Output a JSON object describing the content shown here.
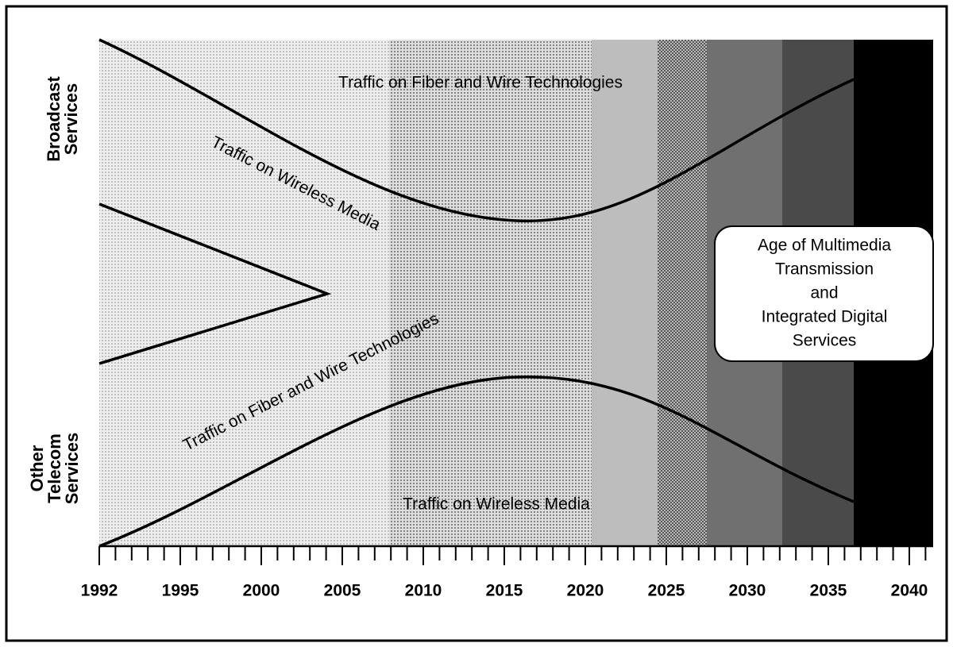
{
  "side_labels": {
    "top": [
      "Broadcast",
      "Services"
    ],
    "bottom": [
      "Other",
      "Telecom",
      "Services"
    ]
  },
  "regions": {
    "top_fiber": "Traffic on Fiber and Wire Technologies",
    "top_wireless": "Traffic on Wireless Media",
    "bottom_fiber": "Traffic on Fiber and Wire Technologies",
    "bottom_wireless": "Traffic on Wireless Media"
  },
  "callout": [
    "Age of Multimedia",
    "Transmission",
    "and",
    "Integrated Digital",
    "Services"
  ],
  "axis": {
    "labels": [
      "1992",
      "1995",
      "2000",
      "2005",
      "2010",
      "2015",
      "2020",
      "2025",
      "2030",
      "2035",
      "2040"
    ]
  }
}
